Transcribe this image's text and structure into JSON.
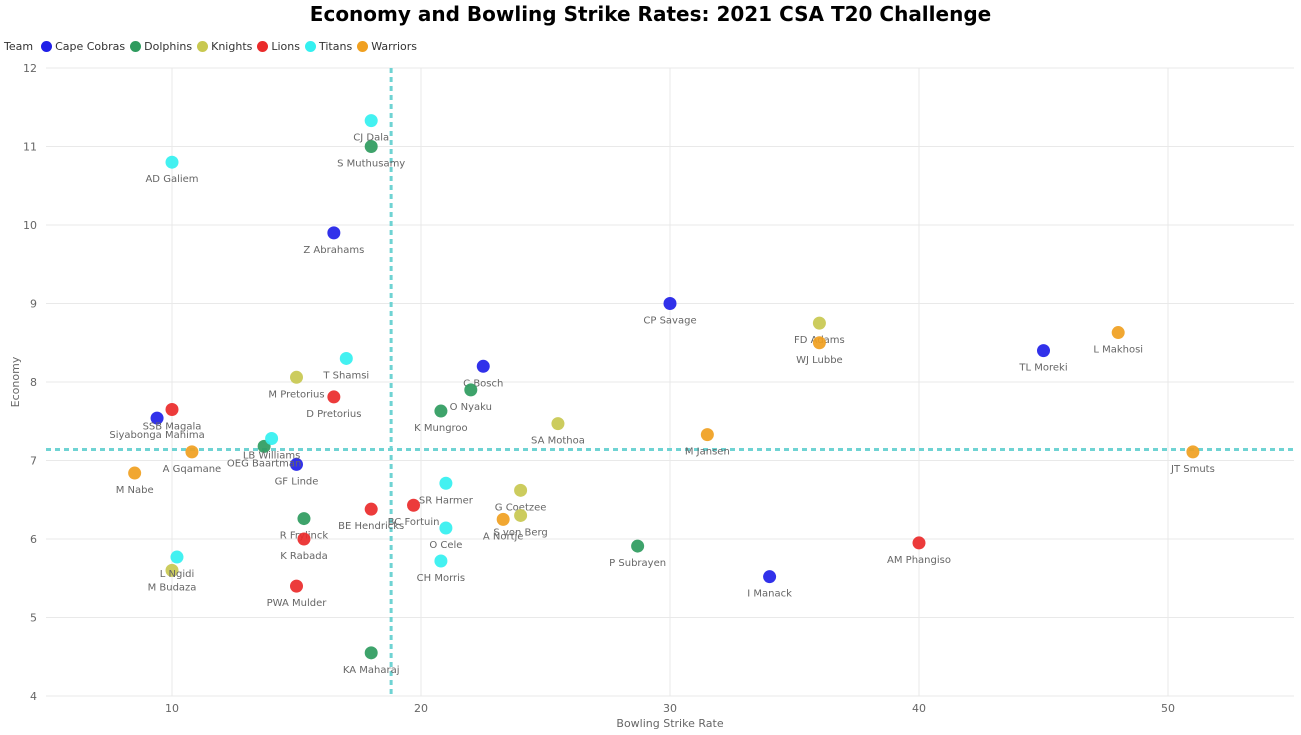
{
  "chart_data": {
    "type": "scatter",
    "title": "Economy and Bowling Strike Rates: 2021 CSA T20 Challenge",
    "xlabel": "Bowling Strike Rate",
    "ylabel": "Economy",
    "xlim": [
      5,
      55
    ],
    "ylim": [
      4,
      12
    ],
    "x_ticks": [
      10,
      20,
      30,
      40,
      50
    ],
    "y_ticks": [
      4,
      5,
      6,
      7,
      8,
      9,
      10,
      11,
      12
    ],
    "grid": true,
    "legend": {
      "title": "Team",
      "placement": "top-left"
    },
    "reference_lines": {
      "x": 18.8,
      "y": 7.14,
      "color": "#6fd3d3"
    },
    "series": [
      {
        "name": "Cape Cobras",
        "color": "#1f1fe8",
        "points": [
          {
            "label": "Z Abrahams",
            "x": 16.5,
            "y": 9.9
          },
          {
            "label": "CP Savage",
            "x": 30.0,
            "y": 9.0
          },
          {
            "label": "TL Moreki",
            "x": 45.0,
            "y": 8.4
          },
          {
            "label": "C Bosch",
            "x": 22.5,
            "y": 8.2
          },
          {
            "label": "Siyabonga Mahima",
            "x": 9.4,
            "y": 7.54
          },
          {
            "label": "GF Linde",
            "x": 15.0,
            "y": 6.95
          },
          {
            "label": "I Manack",
            "x": 34.0,
            "y": 5.52
          }
        ]
      },
      {
        "name": "Dolphins",
        "color": "#2e9b5e",
        "points": [
          {
            "label": "S Muthusamy",
            "x": 18.0,
            "y": 11.0
          },
          {
            "label": "O Nyaku",
            "x": 22.0,
            "y": 7.9
          },
          {
            "label": "K Mungroo",
            "x": 20.8,
            "y": 7.63
          },
          {
            "label": "OEG Baartman",
            "x": 13.7,
            "y": 7.18
          },
          {
            "label": "R Frylinck",
            "x": 15.3,
            "y": 6.26
          },
          {
            "label": "P Subrayen",
            "x": 28.7,
            "y": 5.91
          },
          {
            "label": "KA Maharaj",
            "x": 18.0,
            "y": 4.55
          }
        ]
      },
      {
        "name": "Knights",
        "color": "#c8c850",
        "points": [
          {
            "label": "FD Adams",
            "x": 36.0,
            "y": 8.75
          },
          {
            "label": "M Pretorius",
            "x": 15.0,
            "y": 8.06
          },
          {
            "label": "SA Mothoa",
            "x": 25.5,
            "y": 7.47
          },
          {
            "label": "G Coetzee",
            "x": 24.0,
            "y": 6.62
          },
          {
            "label": "S von Berg",
            "x": 24.0,
            "y": 6.3
          },
          {
            "label": "M Budaza",
            "x": 10.0,
            "y": 5.6
          }
        ]
      },
      {
        "name": "Lions",
        "color": "#ea2a2a",
        "points": [
          {
            "label": "SSB Magala",
            "x": 10.0,
            "y": 7.65
          },
          {
            "label": "D Pretorius",
            "x": 16.5,
            "y": 7.81
          },
          {
            "label": "BC Fortuin",
            "x": 19.7,
            "y": 6.43
          },
          {
            "label": "BE Hendricks",
            "x": 18.0,
            "y": 6.38
          },
          {
            "label": "K Rabada",
            "x": 15.3,
            "y": 6.0
          },
          {
            "label": "AM Phangiso",
            "x": 40.0,
            "y": 5.95
          },
          {
            "label": "PWA Mulder",
            "x": 15.0,
            "y": 5.4
          }
        ]
      },
      {
        "name": "Titans",
        "color": "#33f0f0",
        "points": [
          {
            "label": "CJ Dala",
            "x": 18.0,
            "y": 11.33
          },
          {
            "label": "AD Galiem",
            "x": 10.0,
            "y": 10.8
          },
          {
            "label": "T Shamsi",
            "x": 17.0,
            "y": 8.3
          },
          {
            "label": "LB Williams",
            "x": 14.0,
            "y": 7.28
          },
          {
            "label": "SR Harmer",
            "x": 21.0,
            "y": 6.71
          },
          {
            "label": "O Cele",
            "x": 21.0,
            "y": 6.14
          },
          {
            "label": "CH Morris",
            "x": 20.8,
            "y": 5.72
          },
          {
            "label": "L Ngidi",
            "x": 10.2,
            "y": 5.77
          }
        ]
      },
      {
        "name": "Warriors",
        "color": "#f0a020",
        "points": [
          {
            "label": "L Makhosi",
            "x": 48.0,
            "y": 8.63
          },
          {
            "label": "WJ Lubbe",
            "x": 36.0,
            "y": 8.5
          },
          {
            "label": "M Jansen",
            "x": 31.5,
            "y": 7.33
          },
          {
            "label": "JT Smuts",
            "x": 51.0,
            "y": 7.11
          },
          {
            "label": "A Gqamane",
            "x": 10.8,
            "y": 7.11
          },
          {
            "label": "M Nabe",
            "x": 8.5,
            "y": 6.84
          },
          {
            "label": "A Nortje",
            "x": 23.3,
            "y": 6.25
          }
        ]
      }
    ]
  }
}
